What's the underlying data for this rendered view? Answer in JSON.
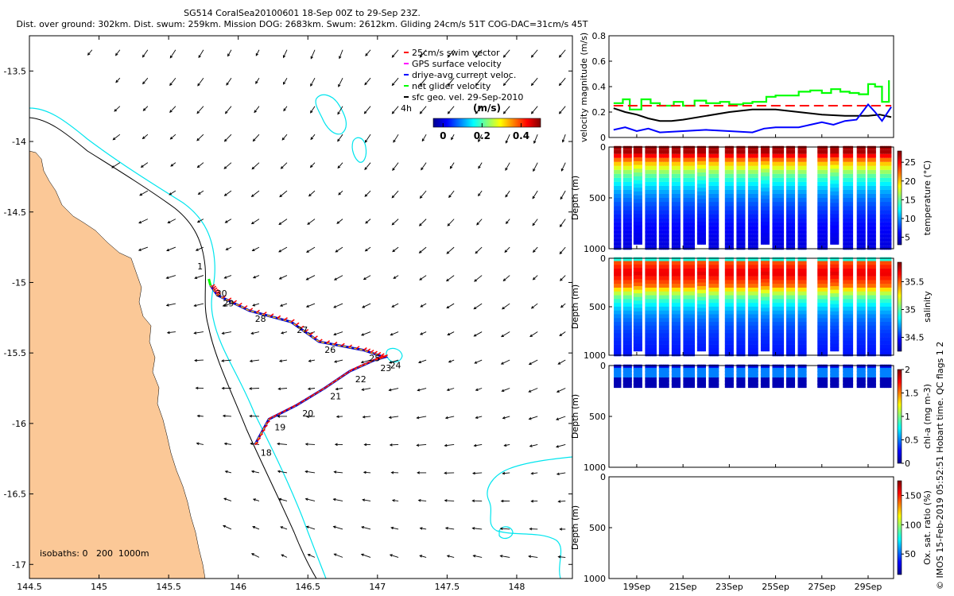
{
  "title": {
    "line1": "SG514 CoralSea20100601 18-Sep 00Z to 29-Sep 23Z.",
    "line2": "Dist. over ground: 302km. Dist. swum: 259km. Mission DOG: 2683km. Swum: 2612km. Gliding 24cm/s 51T COG-DAC=31cm/s 45T"
  },
  "credit": "© IMOS 15-Feb-2019 05:52:51 Hobart time. QC flags 1 2",
  "colors": {
    "land": "#fbc897",
    "isobath_200": "#000000",
    "isobath_1000": "#00e5ee",
    "swim_vector": "#ff0000",
    "gps_velocity": "#ff00ff",
    "dac_velocity": "#0000ff",
    "net_glider": "#00ff00",
    "sfc_geo_vel": "#000000"
  },
  "chart_data": [
    {
      "type": "scatter",
      "name": "map",
      "xlabel": "",
      "ylabel": "",
      "xlim": [
        144.5,
        148.4
      ],
      "ylim": [
        -17.1,
        -13.25
      ],
      "xticks": [
        "144.5",
        "145",
        "145.5",
        "146",
        "146.5",
        "147",
        "147.5",
        "148"
      ],
      "yticks": [
        "-13.5",
        "-14",
        "-14.5",
        "-15",
        "-15.5",
        "-16",
        "-16.5",
        "-17"
      ],
      "legend": {
        "placement": "top-right",
        "items": [
          {
            "label": "25cm/s swim vector",
            "color": "#ff0000"
          },
          {
            "label": "GPS surface velocity",
            "color": "#ff00ff"
          },
          {
            "label": "drive-avg current veloc.",
            "color": "#0000ff"
          },
          {
            "label": "net glider velocity",
            "color": "#00ff00"
          },
          {
            "label": "sfc geo. vel. 29-Sep-2010",
            "color": "#000000"
          }
        ],
        "note": "4h",
        "colorbar_label": "(m/s)",
        "colorbar_ticks": [
          "0",
          "0.2",
          "0.4"
        ],
        "colorbar_range": [
          -0.05,
          0.5
        ]
      },
      "isobath_label": "isobaths: 0   200  1000m",
      "track": [
        {
          "day": "18",
          "lon": 146.12,
          "lat": -16.15
        },
        {
          "day": "19",
          "lon": 146.22,
          "lat": -15.97
        },
        {
          "day": "20",
          "lon": 146.42,
          "lat": -15.87
        },
        {
          "day": "21",
          "lon": 146.62,
          "lat": -15.75
        },
        {
          "day": "22",
          "lon": 146.8,
          "lat": -15.63
        },
        {
          "day": "23",
          "lon": 146.98,
          "lat": -15.55
        },
        {
          "day": "24",
          "lon": 147.05,
          "lat": -15.53
        },
        {
          "day": "25",
          "lon": 146.9,
          "lat": -15.48
        },
        {
          "day": "26",
          "lon": 146.58,
          "lat": -15.42
        },
        {
          "day": "27",
          "lon": 146.38,
          "lat": -15.28
        },
        {
          "day": "28",
          "lon": 146.08,
          "lat": -15.2
        },
        {
          "day": "29",
          "lon": 145.85,
          "lat": -15.09
        },
        {
          "day": "30",
          "lon": 145.8,
          "lat": -15.02
        }
      ],
      "track_end_label": "1",
      "track_end": {
        "lon": 145.82,
        "lat": -14.85
      }
    },
    {
      "type": "line",
      "name": "velocity",
      "ylabel": "velocity magnitude (m/s)",
      "xlim": [
        17.8,
        30.1
      ],
      "ylim": [
        0,
        0.8
      ],
      "yticks": [
        "0",
        "0.2",
        "0.4",
        "0.6",
        "0.8"
      ],
      "series": [
        {
          "color": "#00ff00",
          "x": [
            18,
            18.4,
            18.7,
            19.2,
            19.6,
            20,
            20.6,
            21,
            21.5,
            22,
            22.6,
            23,
            23.6,
            24,
            24.6,
            25,
            25.6,
            26,
            26.5,
            27,
            27.4,
            27.8,
            28.2,
            28.6,
            29,
            29.3,
            29.6,
            29.9
          ],
          "y": [
            0.27,
            0.3,
            0.22,
            0.3,
            0.27,
            0.25,
            0.28,
            0.25,
            0.29,
            0.27,
            0.28,
            0.26,
            0.27,
            0.28,
            0.32,
            0.33,
            0.33,
            0.36,
            0.37,
            0.35,
            0.38,
            0.36,
            0.35,
            0.34,
            0.42,
            0.4,
            0.28,
            0.45
          ]
        },
        {
          "color": "#ff0000",
          "dashed": true,
          "x": [
            18,
            30
          ],
          "y": [
            0.25,
            0.25
          ]
        },
        {
          "color": "#000000",
          "x": [
            18,
            18.5,
            19,
            19.5,
            20,
            20.5,
            21,
            22,
            23,
            24,
            25,
            26,
            27,
            28,
            29,
            29.5,
            30
          ],
          "y": [
            0.23,
            0.2,
            0.18,
            0.15,
            0.13,
            0.13,
            0.14,
            0.17,
            0.2,
            0.22,
            0.22,
            0.2,
            0.18,
            0.17,
            0.17,
            0.18,
            0.16
          ]
        },
        {
          "color": "#0000ff",
          "x": [
            18,
            18.5,
            19,
            19.5,
            20,
            21,
            22,
            23,
            24,
            24.5,
            25,
            26,
            26.5,
            27,
            27.5,
            28,
            28.5,
            29,
            29.3,
            29.6,
            30
          ],
          "y": [
            0.06,
            0.08,
            0.05,
            0.07,
            0.04,
            0.05,
            0.06,
            0.05,
            0.04,
            0.07,
            0.08,
            0.08,
            0.1,
            0.12,
            0.1,
            0.13,
            0.14,
            0.26,
            0.2,
            0.13,
            0.24
          ]
        }
      ]
    },
    {
      "type": "heatmap",
      "name": "temperature",
      "ylabel": "Depth (m)",
      "colorbar_label": "temperature (°C)",
      "colorbar_ticks": [
        "5",
        "10",
        "15",
        "20",
        "25"
      ],
      "colorbar_range": [
        3,
        28
      ],
      "ylim": [
        0,
        1000
      ],
      "yticks": [
        "0",
        "500",
        "1000"
      ],
      "xlim": [
        17.8,
        30.1
      ],
      "surface_value": 27,
      "deep_value": 4.5,
      "thermocline_depth": 280
    },
    {
      "type": "heatmap",
      "name": "salinity",
      "ylabel": "Depth (m)",
      "colorbar_label": "salinity",
      "colorbar_ticks": [
        "34.5",
        "35",
        "35.5"
      ],
      "colorbar_range": [
        34.25,
        35.85
      ],
      "ylim": [
        0,
        1000
      ],
      "yticks": [
        "0",
        "500",
        "1000"
      ],
      "xlim": [
        17.8,
        30.1
      ],
      "surface_value": 34.9,
      "max_value": 35.7,
      "max_depth": 150,
      "deep_value": 34.45
    },
    {
      "type": "heatmap",
      "name": "chlorophyll",
      "ylabel": "Depth (m)",
      "colorbar_label": "chl-a (mg m-3)",
      "colorbar_ticks": [
        "0",
        "0.5",
        "1",
        "1.5",
        "2"
      ],
      "colorbar_range": [
        0,
        2
      ],
      "ylim": [
        0,
        1000
      ],
      "yticks": [
        "0",
        "500",
        "1000"
      ],
      "xlim": [
        17.8,
        30.1
      ],
      "max_depth": 200
    },
    {
      "type": "heatmap",
      "name": "oxygen",
      "ylabel": "Depth (m)",
      "colorbar_label": "Ox. sat. ratio (%)",
      "colorbar_ticks": [
        "50",
        "100",
        "150"
      ],
      "colorbar_range": [
        15,
        175
      ],
      "ylim": [
        0,
        1000
      ],
      "yticks": [
        "0",
        "500",
        "1000"
      ],
      "xlim": [
        17.8,
        30.1
      ],
      "xticks": [
        "19Sep",
        "21Sep",
        "23Sep",
        "25Sep",
        "27Sep",
        "29Sep"
      ],
      "xtick_values": [
        19,
        21,
        23,
        25,
        27,
        29
      ],
      "empty": true
    }
  ],
  "dives": [
    [
      18.05,
      18.3
    ],
    [
      18.45,
      18.75
    ],
    [
      18.9,
      19.25
    ],
    [
      19.4,
      19.85
    ],
    [
      20.0,
      20.4
    ],
    [
      20.55,
      20.9
    ],
    [
      21.05,
      21.5
    ],
    [
      21.65,
      22.0
    ],
    [
      22.15,
      22.55
    ],
    [
      22.85,
      23.15
    ],
    [
      23.35,
      23.7
    ],
    [
      23.85,
      24.25
    ],
    [
      24.4,
      24.75
    ],
    [
      24.9,
      25.35
    ],
    [
      25.5,
      25.8
    ],
    [
      26.0,
      26.35
    ],
    [
      26.85,
      27.25
    ],
    [
      27.4,
      27.75
    ],
    [
      27.95,
      28.35
    ],
    [
      28.55,
      28.85
    ],
    [
      29.0,
      29.35
    ],
    [
      29.55,
      30.0
    ]
  ]
}
